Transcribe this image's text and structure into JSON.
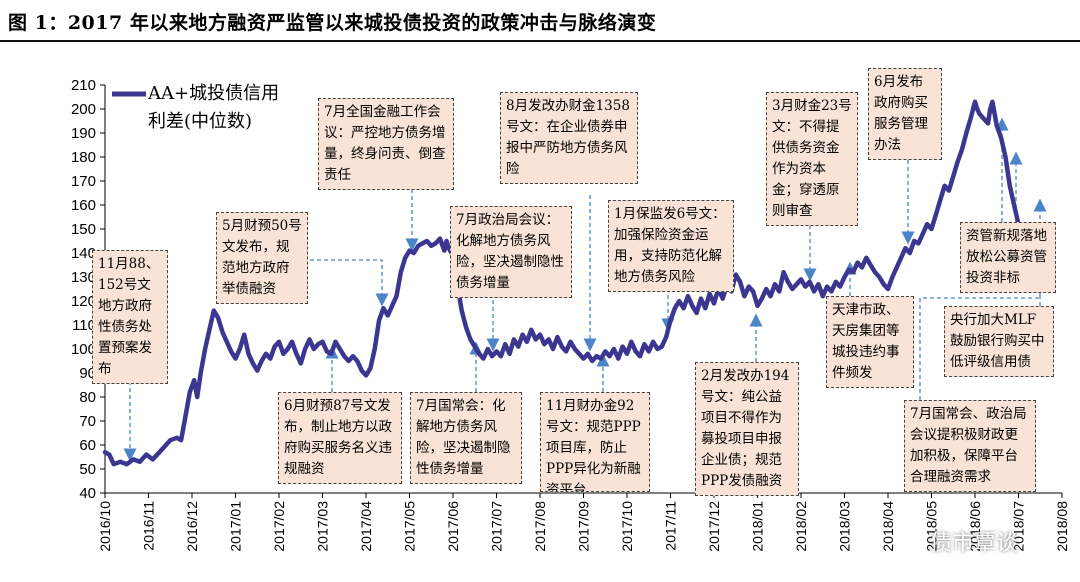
{
  "figure_title": "图 1：2017 年以来地方融资严监管以来城投债投资的政策冲击与脉络演变",
  "watermark": "债市覃谈",
  "colors": {
    "line": "#3c3691",
    "arrow": "#4a86c7",
    "box_bg": "#f8e3d6",
    "box_border": "#444444"
  },
  "chart_data": {
    "type": "line",
    "series": [
      {
        "name": "AA+城投债信用利差（中位数）"
      }
    ],
    "legend_text": "AA+城投债信用利差(中位数)",
    "ylim": [
      40,
      210
    ],
    "yticks": [
      40,
      50,
      60,
      70,
      80,
      90,
      100,
      110,
      120,
      130,
      140,
      150,
      160,
      170,
      180,
      190,
      200,
      210
    ],
    "x_categories": [
      "2016/10",
      "2016/11",
      "2016/12",
      "2017/01",
      "2017/02",
      "2017/03",
      "2017/04",
      "2017/05",
      "2017/06",
      "2017/07",
      "2017/08",
      "2017/09",
      "2017/10",
      "2017/11",
      "2017/12",
      "2018/01",
      "2018/02",
      "2018/03",
      "2018/04",
      "2018/05",
      "2018/06",
      "2018/07",
      "2018/08"
    ],
    "points": [
      [
        0.0,
        57
      ],
      [
        0.1,
        56
      ],
      [
        0.2,
        52
      ],
      [
        0.35,
        53
      ],
      [
        0.5,
        52
      ],
      [
        0.65,
        54
      ],
      [
        0.8,
        53
      ],
      [
        0.95,
        56
      ],
      [
        1.1,
        54
      ],
      [
        1.3,
        58
      ],
      [
        1.5,
        62
      ],
      [
        1.65,
        63
      ],
      [
        1.75,
        62
      ],
      [
        1.85,
        72
      ],
      [
        1.95,
        82
      ],
      [
        2.05,
        87
      ],
      [
        2.12,
        80
      ],
      [
        2.2,
        90
      ],
      [
        2.3,
        100
      ],
      [
        2.4,
        108
      ],
      [
        2.5,
        116
      ],
      [
        2.6,
        113
      ],
      [
        2.7,
        107
      ],
      [
        2.8,
        103
      ],
      [
        2.9,
        99
      ],
      [
        3.0,
        96
      ],
      [
        3.1,
        100
      ],
      [
        3.2,
        106
      ],
      [
        3.3,
        98
      ],
      [
        3.4,
        94
      ],
      [
        3.5,
        91
      ],
      [
        3.6,
        95
      ],
      [
        3.7,
        98
      ],
      [
        3.8,
        96
      ],
      [
        3.9,
        101
      ],
      [
        4.0,
        103
      ],
      [
        4.1,
        98
      ],
      [
        4.2,
        100
      ],
      [
        4.3,
        103
      ],
      [
        4.4,
        98
      ],
      [
        4.5,
        94
      ],
      [
        4.6,
        100
      ],
      [
        4.7,
        104
      ],
      [
        4.8,
        100
      ],
      [
        4.9,
        102
      ],
      [
        5.0,
        103
      ],
      [
        5.1,
        99
      ],
      [
        5.2,
        98
      ],
      [
        5.3,
        103
      ],
      [
        5.4,
        100
      ],
      [
        5.5,
        97
      ],
      [
        5.6,
        95
      ],
      [
        5.7,
        97
      ],
      [
        5.8,
        95
      ],
      [
        5.9,
        91
      ],
      [
        6.0,
        89
      ],
      [
        6.1,
        92
      ],
      [
        6.2,
        100
      ],
      [
        6.3,
        112
      ],
      [
        6.4,
        117
      ],
      [
        6.5,
        114
      ],
      [
        6.6,
        118
      ],
      [
        6.7,
        122
      ],
      [
        6.8,
        132
      ],
      [
        6.9,
        138
      ],
      [
        7.0,
        141
      ],
      [
        7.1,
        140
      ],
      [
        7.2,
        143
      ],
      [
        7.3,
        144
      ],
      [
        7.4,
        145
      ],
      [
        7.5,
        143
      ],
      [
        7.6,
        144
      ],
      [
        7.7,
        146
      ],
      [
        7.8,
        141
      ],
      [
        7.85,
        145
      ],
      [
        7.9,
        142
      ],
      [
        8.0,
        139
      ],
      [
        8.1,
        127
      ],
      [
        8.2,
        116
      ],
      [
        8.3,
        109
      ],
      [
        8.4,
        104
      ],
      [
        8.5,
        101
      ],
      [
        8.6,
        98
      ],
      [
        8.7,
        96
      ],
      [
        8.8,
        100
      ],
      [
        8.9,
        97
      ],
      [
        9.0,
        99
      ],
      [
        9.1,
        97
      ],
      [
        9.2,
        102
      ],
      [
        9.3,
        98
      ],
      [
        9.4,
        104
      ],
      [
        9.5,
        101
      ],
      [
        9.6,
        106
      ],
      [
        9.7,
        103
      ],
      [
        9.8,
        108
      ],
      [
        9.9,
        104
      ],
      [
        10.0,
        106
      ],
      [
        10.1,
        102
      ],
      [
        10.2,
        104
      ],
      [
        10.3,
        100
      ],
      [
        10.4,
        105
      ],
      [
        10.5,
        101
      ],
      [
        10.6,
        99
      ],
      [
        10.7,
        103
      ],
      [
        10.8,
        100
      ],
      [
        10.9,
        98
      ],
      [
        11.0,
        96
      ],
      [
        11.1,
        98
      ],
      [
        11.2,
        95
      ],
      [
        11.3,
        97
      ],
      [
        11.4,
        96
      ],
      [
        11.5,
        99
      ],
      [
        11.6,
        97
      ],
      [
        11.7,
        100
      ],
      [
        11.8,
        96
      ],
      [
        11.9,
        101
      ],
      [
        12.0,
        98
      ],
      [
        12.1,
        103
      ],
      [
        12.2,
        99
      ],
      [
        12.3,
        97
      ],
      [
        12.4,
        102
      ],
      [
        12.5,
        99
      ],
      [
        12.6,
        103
      ],
      [
        12.7,
        100
      ],
      [
        12.8,
        101
      ],
      [
        12.9,
        105
      ],
      [
        13.0,
        112
      ],
      [
        13.1,
        117
      ],
      [
        13.2,
        120
      ],
      [
        13.3,
        117
      ],
      [
        13.4,
        122
      ],
      [
        13.5,
        118
      ],
      [
        13.6,
        115
      ],
      [
        13.7,
        121
      ],
      [
        13.8,
        117
      ],
      [
        13.9,
        123
      ],
      [
        14.0,
        119
      ],
      [
        14.1,
        125
      ],
      [
        14.2,
        121
      ],
      [
        14.3,
        127
      ],
      [
        14.4,
        124
      ],
      [
        14.5,
        131
      ],
      [
        14.6,
        128
      ],
      [
        14.7,
        122
      ],
      [
        14.8,
        126
      ],
      [
        14.9,
        124
      ],
      [
        15.0,
        118
      ],
      [
        15.1,
        121
      ],
      [
        15.2,
        125
      ],
      [
        15.3,
        122
      ],
      [
        15.4,
        127
      ],
      [
        15.5,
        124
      ],
      [
        15.6,
        132
      ],
      [
        15.7,
        128
      ],
      [
        15.8,
        125
      ],
      [
        15.9,
        127
      ],
      [
        16.0,
        129
      ],
      [
        16.1,
        126
      ],
      [
        16.2,
        128
      ],
      [
        16.3,
        124
      ],
      [
        16.4,
        127
      ],
      [
        16.5,
        122
      ],
      [
        16.6,
        126
      ],
      [
        16.7,
        124
      ],
      [
        16.8,
        128
      ],
      [
        16.9,
        126
      ],
      [
        17.0,
        130
      ],
      [
        17.1,
        133
      ],
      [
        17.2,
        132
      ],
      [
        17.3,
        136
      ],
      [
        17.4,
        134
      ],
      [
        17.5,
        138
      ],
      [
        17.6,
        135
      ],
      [
        17.7,
        132
      ],
      [
        17.8,
        130
      ],
      [
        17.9,
        127
      ],
      [
        18.0,
        125
      ],
      [
        18.1,
        130
      ],
      [
        18.2,
        134
      ],
      [
        18.3,
        138
      ],
      [
        18.4,
        142
      ],
      [
        18.5,
        140
      ],
      [
        18.6,
        145
      ],
      [
        18.7,
        144
      ],
      [
        18.8,
        148
      ],
      [
        18.9,
        152
      ],
      [
        19.0,
        150
      ],
      [
        19.1,
        156
      ],
      [
        19.2,
        162
      ],
      [
        19.3,
        168
      ],
      [
        19.4,
        166
      ],
      [
        19.5,
        172
      ],
      [
        19.6,
        178
      ],
      [
        19.7,
        183
      ],
      [
        19.8,
        190
      ],
      [
        19.9,
        196
      ],
      [
        20.0,
        203
      ],
      [
        20.05,
        200
      ],
      [
        20.1,
        198
      ],
      [
        20.2,
        196
      ],
      [
        20.3,
        194
      ],
      [
        20.35,
        200
      ],
      [
        20.4,
        203
      ],
      [
        20.5,
        193
      ],
      [
        20.6,
        188
      ],
      [
        20.7,
        180
      ],
      [
        20.8,
        168
      ],
      [
        20.9,
        160
      ],
      [
        21.0,
        152
      ],
      [
        21.1,
        149
      ],
      [
        21.2,
        147
      ],
      [
        21.3,
        145
      ],
      [
        21.4,
        143
      ]
    ]
  },
  "annotations": [
    {
      "id": "nov2016",
      "text": "11月88、152号文地方政府性债务处置预案发布"
    },
    {
      "id": "may-fiscal50",
      "text": "5月财预50号文发布，规范地方政府举债融资"
    },
    {
      "id": "jun-fiscal87",
      "text": "6月财预87号文发布，制止地方以政府购买服务名义违规融资"
    },
    {
      "id": "jul-finconf",
      "text": "7月全国金融工作会议：严控地方债务增量，终身问责、倒查责任"
    },
    {
      "id": "jul-state",
      "text": "7月国常会：化解地方债务风险，坚决遏制隐性债务增量"
    },
    {
      "id": "jul-politburo",
      "text": "7月政治局会议：化解地方债务风险，坚决遏制隐性债务增量"
    },
    {
      "id": "aug-ndrc1358",
      "text": "8月发改办财金1358号文：在企业债券申报中严防地方债务风险"
    },
    {
      "id": "nov-fin92",
      "text": "11月财办金92号文：规范PPP项目库，防止PPP异化为新融资平台"
    },
    {
      "id": "jan-circ6",
      "text": "1月保监发6号文：加强保险资金运用，支持防范化解地方债务风险"
    },
    {
      "id": "feb-ndrc194",
      "text": "2月发改办194号文：纯公益项目不得作为募投项目申报企业债；规范PPP发债融资"
    },
    {
      "id": "mar-fin23",
      "text": "3月财金23号文：不得提供债务资金作为资本金；穿透原则审查"
    },
    {
      "id": "tianjin",
      "text": "天津市政、天房集团等城投违约事件频发"
    },
    {
      "id": "jun-procure",
      "text": "6月发布政府购买服务管理办法"
    },
    {
      "id": "jul-state-2018",
      "text": "7月国常会、政治局会议提积极财政更加积极，保障平台合理融资需求"
    },
    {
      "id": "am-rules",
      "text": "资管新规落地放松公募资管投资非标"
    },
    {
      "id": "pboc-mlf",
      "text": "央行加大MLF鼓励银行购买中低评级信用债"
    }
  ]
}
